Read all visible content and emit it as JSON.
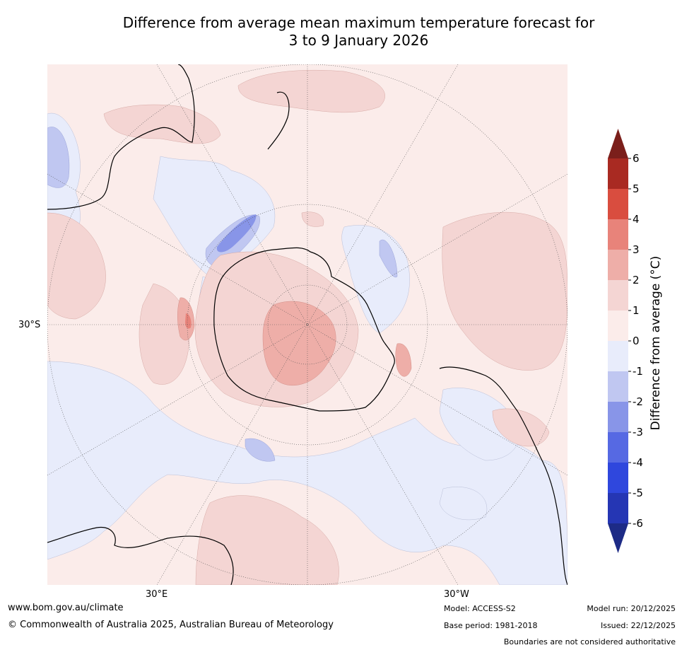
{
  "title_line1": "Difference from average mean maximum temperature forecast for",
  "title_line2": "3 to 9 January 2026",
  "map": {
    "lat_label": "30°S",
    "lon_labels": [
      "30°E",
      "30°W"
    ]
  },
  "colorbar": {
    "label": "Difference from average (°C)",
    "ticks": [
      "6",
      "5",
      "4",
      "3",
      "2",
      "1",
      "0",
      "-1",
      "-2",
      "-3",
      "-4",
      "-5",
      "-6"
    ],
    "colors": [
      "#7b1f1b",
      "#a92a22",
      "#d94d3f",
      "#e8837a",
      "#eeaea8",
      "#f4d5d3",
      "#fbecea",
      "#e8ecfb",
      "#c0c7f1",
      "#8895e8",
      "#5669e3",
      "#2f47dd",
      "#2536b4",
      "#1d2b86"
    ]
  },
  "footer": {
    "website": "www.bom.gov.au/climate",
    "copyright": "© Commonwealth of Australia 2025, Australian Bureau of Meteorology",
    "model": "Model: ACCESS-S2",
    "base_period": "Base period: 1981-2018",
    "model_run": "Model run: 20/12/2025",
    "issued": "Issued: 22/12/2025",
    "disclaimer": "Boundaries are not considered authoritative"
  }
}
